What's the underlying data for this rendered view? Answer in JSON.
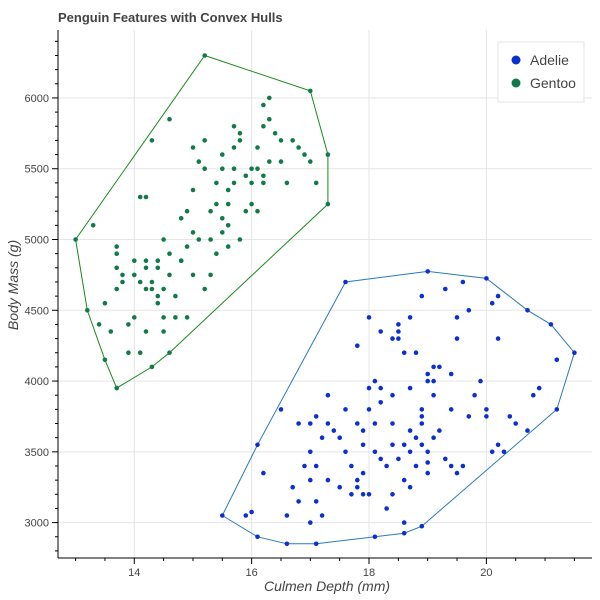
{
  "chart_data": {
    "type": "scatter",
    "title": "Penguin Features with Convex Hulls",
    "xlabel": "Culmen Depth (mm)",
    "ylabel": "Body Mass (g)",
    "xlim": [
      12.7,
      21.8
    ],
    "ylim": [
      2750,
      6480
    ],
    "x_ticks": [
      14,
      16,
      18,
      20
    ],
    "y_ticks": [
      3000,
      3500,
      4000,
      4500,
      5000,
      5500,
      6000
    ],
    "grid": true,
    "legend_position": "top-right",
    "series": [
      {
        "name": "Adelie",
        "color": "#0b2fd0",
        "hull_color": "#2a7ab8",
        "hull": [
          [
            15.5,
            3050
          ],
          [
            16.1,
            2900
          ],
          [
            16.6,
            2850
          ],
          [
            17.1,
            2850
          ],
          [
            18.1,
            2900
          ],
          [
            18.6,
            2925
          ],
          [
            18.9,
            2975
          ],
          [
            21.2,
            3800
          ],
          [
            21.5,
            4200
          ],
          [
            21.1,
            4400
          ],
          [
            20.7,
            4500
          ],
          [
            20.0,
            4725
          ],
          [
            19.0,
            4775
          ],
          [
            17.6,
            4700
          ],
          [
            16.1,
            3550
          ]
        ],
        "points": [
          [
            15.5,
            3050
          ],
          [
            16.1,
            2900
          ],
          [
            16.6,
            2850
          ],
          [
            17.1,
            2850
          ],
          [
            18.1,
            2900
          ],
          [
            18.6,
            2925
          ],
          [
            18.9,
            2975
          ],
          [
            21.2,
            3800
          ],
          [
            21.5,
            4200
          ],
          [
            21.1,
            4400
          ],
          [
            20.7,
            4500
          ],
          [
            20.0,
            4725
          ],
          [
            19.0,
            4775
          ],
          [
            17.6,
            4700
          ],
          [
            16.1,
            3550
          ],
          [
            16.0,
            3075
          ],
          [
            15.9,
            3050
          ],
          [
            16.5,
            3800
          ],
          [
            16.2,
            3350
          ],
          [
            16.6,
            3050
          ],
          [
            16.8,
            3150
          ],
          [
            16.7,
            3250
          ],
          [
            16.8,
            3700
          ],
          [
            16.9,
            3400
          ],
          [
            17.0,
            3700
          ],
          [
            17.0,
            3500
          ],
          [
            17.0,
            3300
          ],
          [
            17.0,
            3000
          ],
          [
            17.1,
            3400
          ],
          [
            17.1,
            3750
          ],
          [
            17.1,
            3150
          ],
          [
            17.2,
            3600
          ],
          [
            17.3,
            3300
          ],
          [
            17.2,
            3050
          ],
          [
            17.3,
            3700
          ],
          [
            17.4,
            3650
          ],
          [
            17.5,
            3600
          ],
          [
            17.5,
            3250
          ],
          [
            17.6,
            3800
          ],
          [
            17.6,
            3500
          ],
          [
            17.7,
            3200
          ],
          [
            17.7,
            3400
          ],
          [
            17.8,
            3300
          ],
          [
            17.8,
            3700
          ],
          [
            17.9,
            3550
          ],
          [
            17.8,
            3250
          ],
          [
            17.9,
            3350
          ],
          [
            18.0,
            3950
          ],
          [
            18.0,
            3800
          ],
          [
            17.9,
            3200
          ],
          [
            18.0,
            3200
          ],
          [
            18.1,
            3700
          ],
          [
            18.1,
            3500
          ],
          [
            18.1,
            4000
          ],
          [
            18.2,
            3950
          ],
          [
            18.2,
            3850
          ],
          [
            18.2,
            3450
          ],
          [
            18.3,
            3400
          ],
          [
            18.3,
            3100
          ],
          [
            18.4,
            3700
          ],
          [
            18.4,
            3900
          ],
          [
            18.4,
            3550
          ],
          [
            18.4,
            4300
          ],
          [
            18.5,
            4300
          ],
          [
            18.4,
            3200
          ],
          [
            18.5,
            3450
          ],
          [
            18.6,
            4200
          ],
          [
            18.6,
            3550
          ],
          [
            18.6,
            3300
          ],
          [
            18.6,
            3000
          ],
          [
            18.7,
            3950
          ],
          [
            18.7,
            3650
          ],
          [
            18.7,
            3500
          ],
          [
            18.7,
            3250
          ],
          [
            18.8,
            3600
          ],
          [
            18.8,
            3400
          ],
          [
            18.9,
            3800
          ],
          [
            18.9,
            3700
          ],
          [
            18.9,
            3550
          ],
          [
            19.0,
            4050
          ],
          [
            19.0,
            3500
          ],
          [
            19.0,
            3425
          ],
          [
            19.0,
            4000
          ],
          [
            19.1,
            3900
          ],
          [
            19.1,
            3600
          ],
          [
            19.1,
            4100
          ],
          [
            19.2,
            3650
          ],
          [
            19.3,
            3450
          ],
          [
            19.4,
            3400
          ],
          [
            19.4,
            3800
          ],
          [
            19.5,
            3350
          ],
          [
            19.6,
            3400
          ],
          [
            19.7,
            3750
          ],
          [
            19.8,
            3900
          ],
          [
            20.0,
            3800
          ],
          [
            20.1,
            3500
          ],
          [
            20.0,
            3750
          ],
          [
            20.2,
            3550
          ],
          [
            20.3,
            3500
          ],
          [
            20.5,
            3700
          ],
          [
            20.8,
            3900
          ],
          [
            20.7,
            3650
          ],
          [
            20.4,
            3750
          ],
          [
            20.2,
            4300
          ],
          [
            21.2,
            4150
          ],
          [
            20.9,
            3950
          ],
          [
            17.9,
            3650
          ],
          [
            17.3,
            3900
          ],
          [
            18.8,
            4200
          ],
          [
            19.2,
            4100
          ],
          [
            18.9,
            4600
          ],
          [
            19.3,
            4650
          ],
          [
            19.5,
            4300
          ],
          [
            19.5,
            4450
          ],
          [
            20.2,
            4600
          ],
          [
            18.5,
            4350
          ],
          [
            18.7,
            4450
          ],
          [
            19.1,
            4000
          ],
          [
            18.2,
            4350
          ],
          [
            17.8,
            4250
          ],
          [
            18.0,
            4450
          ],
          [
            18.5,
            4400
          ],
          [
            19.4,
            4050
          ],
          [
            19.6,
            4700
          ],
          [
            18.9,
            3750
          ],
          [
            19.0,
            3350
          ],
          [
            19.9,
            4000
          ],
          [
            20.1,
            4550
          ],
          [
            19.7,
            4500
          ]
        ]
      },
      {
        "name": "Gentoo",
        "color": "#107a49",
        "hull_color": "#1a8a1a",
        "hull": [
          [
            13.2,
            4500
          ],
          [
            13.0,
            5000
          ],
          [
            15.2,
            6300
          ],
          [
            17.0,
            6050
          ],
          [
            17.3,
            5600
          ],
          [
            17.3,
            5250
          ],
          [
            14.6,
            4200
          ],
          [
            14.3,
            4100
          ],
          [
            13.7,
            3950
          ],
          [
            13.5,
            4150
          ]
        ],
        "points": [
          [
            13.2,
            4500
          ],
          [
            13.0,
            5000
          ],
          [
            15.2,
            6300
          ],
          [
            17.0,
            6050
          ],
          [
            17.3,
            5600
          ],
          [
            17.3,
            5250
          ],
          [
            14.6,
            4200
          ],
          [
            14.3,
            4100
          ],
          [
            13.7,
            3950
          ],
          [
            13.5,
            4150
          ],
          [
            13.3,
            5100
          ],
          [
            13.4,
            4400
          ],
          [
            13.5,
            4550
          ],
          [
            13.6,
            4350
          ],
          [
            13.7,
            4900
          ],
          [
            13.7,
            4950
          ],
          [
            13.7,
            4800
          ],
          [
            13.7,
            4650
          ],
          [
            13.8,
            4700
          ],
          [
            13.8,
            4750
          ],
          [
            13.9,
            4200
          ],
          [
            13.9,
            4400
          ],
          [
            14.0,
            4850
          ],
          [
            14.1,
            4200
          ],
          [
            14.0,
            4450
          ],
          [
            14.1,
            4700
          ],
          [
            14.2,
            4850
          ],
          [
            14.2,
            4800
          ],
          [
            14.2,
            4350
          ],
          [
            14.3,
            4700
          ],
          [
            14.3,
            4650
          ],
          [
            14.4,
            4600
          ],
          [
            14.4,
            4550
          ],
          [
            14.4,
            4800
          ],
          [
            14.4,
            4850
          ],
          [
            14.5,
            5000
          ],
          [
            14.5,
            4650
          ],
          [
            14.5,
            4450
          ],
          [
            14.5,
            4350
          ],
          [
            14.6,
            4750
          ],
          [
            14.6,
            4900
          ],
          [
            14.7,
            4600
          ],
          [
            14.7,
            4450
          ],
          [
            14.8,
            5150
          ],
          [
            14.8,
            4850
          ],
          [
            14.9,
            5200
          ],
          [
            14.9,
            4450
          ],
          [
            15.0,
            5050
          ],
          [
            15.0,
            4750
          ],
          [
            15.0,
            5350
          ],
          [
            15.1,
            5000
          ],
          [
            15.1,
            5550
          ],
          [
            15.2,
            5700
          ],
          [
            15.2,
            5500
          ],
          [
            15.2,
            4650
          ],
          [
            15.3,
            5000
          ],
          [
            15.3,
            5200
          ],
          [
            15.4,
            5400
          ],
          [
            15.4,
            4900
          ],
          [
            15.5,
            5050
          ],
          [
            15.5,
            5150
          ],
          [
            15.5,
            5500
          ],
          [
            15.5,
            5600
          ],
          [
            15.6,
            5350
          ],
          [
            15.6,
            5250
          ],
          [
            15.6,
            5100
          ],
          [
            15.7,
            5650
          ],
          [
            15.7,
            5400
          ],
          [
            15.7,
            5800
          ],
          [
            15.8,
            5000
          ],
          [
            15.8,
            5700
          ],
          [
            15.9,
            5450
          ],
          [
            15.9,
            5200
          ],
          [
            16.0,
            5250
          ],
          [
            16.0,
            5500
          ],
          [
            16.0,
            5400
          ],
          [
            16.1,
            5650
          ],
          [
            16.1,
            5200
          ],
          [
            16.1,
            5500
          ],
          [
            16.2,
            5800
          ],
          [
            16.2,
            5950
          ],
          [
            16.3,
            5550
          ],
          [
            16.4,
            5750
          ],
          [
            16.3,
            6000
          ],
          [
            16.3,
            5850
          ],
          [
            16.5,
            5550
          ],
          [
            16.5,
            5700
          ],
          [
            16.6,
            5400
          ],
          [
            16.7,
            5700
          ],
          [
            16.8,
            5650
          ],
          [
            17.0,
            5550
          ],
          [
            17.1,
            5400
          ],
          [
            16.9,
            5600
          ],
          [
            15.0,
            5650
          ],
          [
            14.6,
            5850
          ],
          [
            14.3,
            5700
          ],
          [
            14.2,
            5300
          ],
          [
            14.1,
            5300
          ],
          [
            15.8,
            5750
          ],
          [
            16.2,
            5400
          ],
          [
            15.7,
            5500
          ],
          [
            15.3,
            4750
          ],
          [
            14.8,
            4850
          ],
          [
            15.4,
            5250
          ],
          [
            14.9,
            4950
          ],
          [
            14.0,
            4750
          ],
          [
            14.2,
            4650
          ],
          [
            15.6,
            4950
          ],
          [
            16.2,
            5450
          ]
        ]
      }
    ]
  }
}
